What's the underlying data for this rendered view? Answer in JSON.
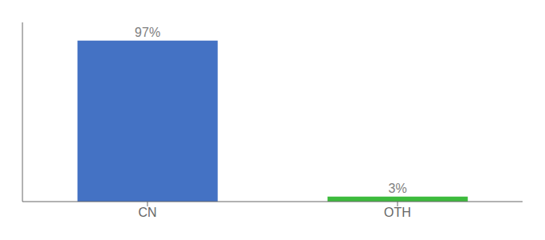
{
  "chart_data": {
    "type": "bar",
    "categories": [
      "CN",
      "OTH"
    ],
    "values": [
      97,
      3
    ],
    "value_labels": [
      "97%",
      "3%"
    ],
    "data_labels": true,
    "colors": [
      "#4472c4",
      "#3dbb3d"
    ],
    "ylim": [
      0,
      108
    ],
    "tick_labels": "x",
    "grid": false
  }
}
